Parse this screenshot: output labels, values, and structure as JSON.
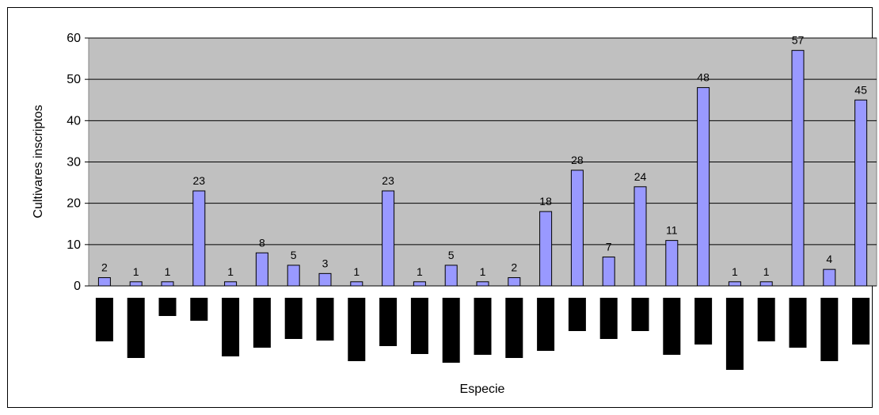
{
  "chart_data": {
    "type": "bar",
    "title": "",
    "xlabel": "Especie",
    "ylabel": "Cultivares inscriptos",
    "ylim": [
      0,
      60
    ],
    "yticks": [
      "0",
      "10",
      "20",
      "30",
      "40",
      "50",
      "60"
    ],
    "grid": true,
    "legend": "none",
    "values": [
      2,
      1,
      1,
      23,
      1,
      8,
      5,
      3,
      1,
      23,
      1,
      5,
      1,
      2,
      18,
      28,
      7,
      24,
      11,
      48,
      1,
      1,
      57,
      4,
      45
    ],
    "data_labels": [
      "2",
      "1",
      "1",
      "23",
      "1",
      "8",
      "5",
      "3",
      "1",
      "23",
      "1",
      "5",
      "1",
      "2",
      "18",
      "28",
      "7",
      "24",
      "11",
      "48",
      "1",
      "1",
      "57",
      "4",
      "45"
    ],
    "colors": {
      "bar": "#9999ff",
      "plot_bg": "#c0c0c0",
      "category_label_mark": "#000000"
    }
  }
}
